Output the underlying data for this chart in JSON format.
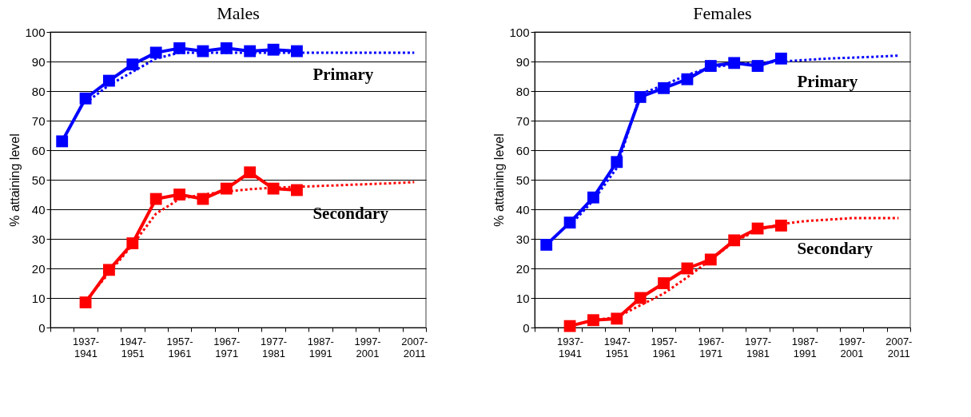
{
  "chart_data": [
    {
      "type": "line",
      "title": "Males",
      "ylabel": "% attaining level",
      "categories": [
        null,
        "1937-1941",
        null,
        "1947-1951",
        null,
        "1957-1961",
        null,
        "1967-1971",
        null,
        "1977-1981",
        null,
        "1987-1991",
        null,
        "1997-2001",
        null,
        "2007-2011"
      ],
      "ylim": [
        0,
        100
      ],
      "yticks": [
        0,
        10,
        20,
        30,
        40,
        50,
        60,
        70,
        80,
        90,
        100
      ],
      "grid": "y",
      "legend": false,
      "series": [
        {
          "name": "Primary",
          "color": "#0000ff",
          "marker": "square",
          "line_style": "solid",
          "values": [
            63,
            77.5,
            83.5,
            89,
            93,
            94.5,
            93.5,
            94.5,
            93.5,
            94,
            93.5,
            null,
            null,
            null,
            null,
            null
          ]
        },
        {
          "color": "#0000ff",
          "marker": "none",
          "line_style": "dotted",
          "values": [
            null,
            76,
            82,
            86.5,
            91,
            93,
            93,
            93,
            93,
            93,
            93,
            93,
            93,
            93,
            93,
            93
          ]
        },
        {
          "name": "Secondary",
          "color": "#ff0000",
          "marker": "square",
          "line_style": "solid",
          "values": [
            null,
            8.5,
            19.5,
            28.5,
            43.5,
            45,
            43.5,
            47,
            52.5,
            47,
            46.5,
            null,
            null,
            null,
            null,
            null
          ]
        },
        {
          "color": "#ff0000",
          "marker": "none",
          "line_style": "dotted",
          "values": [
            null,
            9,
            18.5,
            28,
            38.5,
            43.5,
            45,
            46,
            46.8,
            47.3,
            47.6,
            47.9,
            48.2,
            48.5,
            48.8,
            49.2
          ]
        }
      ]
    },
    {
      "type": "line",
      "title": "Females",
      "ylabel": "% attaining level",
      "categories": [
        null,
        "1937-1941",
        null,
        "1947-1951",
        null,
        "1957-1961",
        null,
        "1967-1971",
        null,
        "1977-1981",
        null,
        "1987-1991",
        null,
        "1997-2001",
        null,
        "2007-2011"
      ],
      "ylim": [
        0,
        100
      ],
      "yticks": [
        0,
        10,
        20,
        30,
        40,
        50,
        60,
        70,
        80,
        90,
        100
      ],
      "grid": "y",
      "legend": false,
      "series": [
        {
          "name": "Primary",
          "color": "#0000ff",
          "marker": "square",
          "line_style": "solid",
          "values": [
            28,
            35.5,
            44,
            56,
            78,
            81,
            84,
            88.5,
            89.5,
            88.5,
            91,
            null,
            null,
            null,
            null,
            null
          ]
        },
        {
          "color": "#0000ff",
          "marker": "none",
          "line_style": "dotted",
          "values": [
            null,
            34.5,
            43,
            54,
            79,
            82,
            85.5,
            88,
            89,
            89.5,
            90,
            90.5,
            91,
            91.3,
            91.6,
            92
          ]
        },
        {
          "name": "Secondary",
          "color": "#ff0000",
          "marker": "square",
          "line_style": "solid",
          "values": [
            null,
            0.5,
            2.5,
            3,
            10,
            15,
            20,
            23,
            29.5,
            33.5,
            34.5,
            null,
            null,
            null,
            null,
            null
          ]
        },
        {
          "color": "#ff0000",
          "marker": "none",
          "line_style": "dotted",
          "values": [
            null,
            0.5,
            2.5,
            3.5,
            7.5,
            11.5,
            17,
            23,
            29,
            33,
            35,
            36,
            36.5,
            37,
            37,
            37
          ]
        }
      ]
    }
  ]
}
